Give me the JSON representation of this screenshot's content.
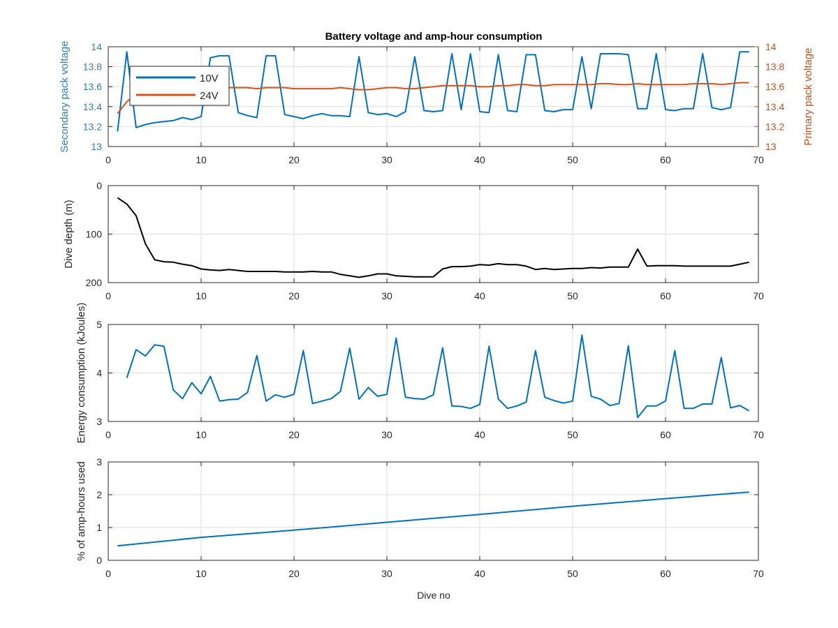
{
  "figure": {
    "title": "Battery voltage and amp-hour consumption",
    "xlabel": "Dive no"
  },
  "colors": {
    "blue": "#0072BD",
    "orange": "#D95319",
    "black": "#000000",
    "grid": "#dcdcdc",
    "axes": "#262626",
    "left_axis_blue": "#2f7fb6",
    "right_axis_orange": "#c8501c"
  },
  "chart_data": [
    {
      "type": "line",
      "title": "Battery voltage and amp-hour consumption",
      "xlabel": "",
      "ylabel": "Secondary pack voltage",
      "ylabel_right": "Primary pack voltage",
      "xlim": [
        0,
        70
      ],
      "ylim": [
        13,
        14
      ],
      "ylim_right": [
        13,
        14
      ],
      "xticks": [
        0,
        10,
        20,
        30,
        40,
        50,
        60,
        70
      ],
      "yticks": [
        13,
        13.2,
        13.4,
        13.6,
        13.8,
        14
      ],
      "yticklabels": [
        "13",
        "13.2",
        "13.4",
        "13.6",
        "13.8",
        "14"
      ],
      "yticks_right": [
        13,
        13.2,
        13.4,
        13.6,
        13.8,
        14
      ],
      "yticklabels_right": [
        "13",
        "13.2",
        "13.4",
        "13.6",
        "13.8",
        "14"
      ],
      "grid": true,
      "legend_position": "top-left",
      "series": [
        {
          "name": "10V",
          "axis": "left",
          "x": [
            1,
            2,
            3,
            4,
            5,
            6,
            7,
            8,
            9,
            10,
            11,
            12,
            13,
            14,
            15,
            16,
            17,
            18,
            19,
            20,
            21,
            22,
            23,
            24,
            25,
            26,
            27,
            28,
            29,
            30,
            31,
            32,
            33,
            34,
            35,
            36,
            37,
            38,
            39,
            40,
            41,
            42,
            43,
            44,
            45,
            46,
            47,
            48,
            49,
            50,
            51,
            52,
            53,
            54,
            55,
            56,
            57,
            58,
            59,
            60,
            61,
            62,
            63,
            64,
            65,
            66,
            67,
            68,
            69
          ],
          "values": [
            13.15,
            13.95,
            13.19,
            13.22,
            13.24,
            13.25,
            13.26,
            13.29,
            13.27,
            13.3,
            13.89,
            13.91,
            13.91,
            13.34,
            13.31,
            13.29,
            13.91,
            13.91,
            13.32,
            13.3,
            13.28,
            13.31,
            13.33,
            13.31,
            13.31,
            13.3,
            13.9,
            13.34,
            13.32,
            13.33,
            13.3,
            13.35,
            13.9,
            13.36,
            13.35,
            13.36,
            13.93,
            13.37,
            13.93,
            13.35,
            13.34,
            13.92,
            13.36,
            13.35,
            13.92,
            13.92,
            13.36,
            13.35,
            13.37,
            13.37,
            13.9,
            13.38,
            13.93,
            13.93,
            13.93,
            13.92,
            13.38,
            13.38,
            13.93,
            13.37,
            13.36,
            13.38,
            13.38,
            13.93,
            13.39,
            13.37,
            13.39,
            13.95,
            13.95
          ]
        },
        {
          "name": "24V",
          "axis": "right",
          "x": [
            1,
            2,
            3,
            4,
            5,
            6,
            7,
            8,
            9,
            10,
            11,
            12,
            13,
            14,
            15,
            16,
            17,
            18,
            19,
            20,
            21,
            22,
            23,
            24,
            25,
            26,
            27,
            28,
            29,
            30,
            31,
            32,
            33,
            34,
            35,
            36,
            37,
            38,
            39,
            40,
            41,
            42,
            43,
            44,
            45,
            46,
            47,
            48,
            49,
            50,
            51,
            52,
            53,
            54,
            55,
            56,
            57,
            58,
            59,
            60,
            61,
            62,
            63,
            64,
            65,
            66,
            67,
            68,
            69
          ],
          "values": [
            13.33,
            13.45,
            13.52,
            13.55,
            13.56,
            13.57,
            13.57,
            13.58,
            13.58,
            13.58,
            13.59,
            13.59,
            13.59,
            13.59,
            13.59,
            13.58,
            13.59,
            13.59,
            13.59,
            13.58,
            13.58,
            13.58,
            13.58,
            13.58,
            13.59,
            13.58,
            13.57,
            13.57,
            13.58,
            13.59,
            13.59,
            13.58,
            13.58,
            13.59,
            13.6,
            13.61,
            13.61,
            13.61,
            13.61,
            13.6,
            13.6,
            13.61,
            13.61,
            13.62,
            13.62,
            13.61,
            13.61,
            13.62,
            13.62,
            13.62,
            13.62,
            13.62,
            13.63,
            13.63,
            13.62,
            13.62,
            13.63,
            13.62,
            13.62,
            13.62,
            13.62,
            13.62,
            13.63,
            13.63,
            13.63,
            13.62,
            13.63,
            13.64,
            13.64
          ]
        }
      ]
    },
    {
      "type": "line",
      "title": "",
      "xlabel": "",
      "ylabel": "Dive depth (m)",
      "xlim": [
        0,
        70
      ],
      "ylim": [
        0,
        200
      ],
      "y_reversed": true,
      "xticks": [
        0,
        10,
        20,
        30,
        40,
        50,
        60,
        70
      ],
      "yticks": [
        0,
        100,
        200
      ],
      "yticklabels": [
        "0",
        "100",
        "200"
      ],
      "grid": true,
      "series": [
        {
          "x": [
            1,
            2,
            3,
            4,
            5,
            6,
            7,
            8,
            9,
            10,
            11,
            12,
            13,
            14,
            15,
            16,
            17,
            18,
            19,
            20,
            21,
            22,
            23,
            24,
            25,
            26,
            27,
            28,
            29,
            30,
            31,
            32,
            33,
            34,
            35,
            36,
            37,
            38,
            39,
            40,
            41,
            42,
            43,
            44,
            45,
            46,
            47,
            48,
            49,
            50,
            51,
            52,
            53,
            54,
            55,
            56,
            57,
            58,
            59,
            60,
            61,
            62,
            63,
            64,
            65,
            66,
            67,
            68,
            69
          ],
          "values": [
            25,
            38,
            62,
            120,
            153,
            157,
            158,
            162,
            165,
            172,
            174,
            175,
            173,
            175,
            177,
            177,
            177,
            177,
            178,
            178,
            178,
            177,
            178,
            178,
            183,
            186,
            189,
            186,
            182,
            182,
            186,
            187,
            188,
            188,
            188,
            172,
            167,
            167,
            166,
            163,
            164,
            161,
            163,
            163,
            166,
            173,
            171,
            173,
            172,
            171,
            171,
            169,
            170,
            168,
            168,
            168,
            131,
            166,
            165,
            165,
            165,
            166,
            166,
            166,
            166,
            166,
            166,
            162,
            158
          ]
        }
      ]
    },
    {
      "type": "line",
      "title": "",
      "xlabel": "",
      "ylabel": "Energy consumption (kJoules)",
      "xlim": [
        0,
        70
      ],
      "ylim": [
        3,
        5
      ],
      "xticks": [
        0,
        10,
        20,
        30,
        40,
        50,
        60,
        70
      ],
      "yticks": [
        3,
        4,
        5
      ],
      "yticklabels": [
        "3",
        "4",
        "5"
      ],
      "grid": true,
      "series": [
        {
          "x": [
            2,
            3,
            4,
            5,
            6,
            7,
            8,
            9,
            10,
            11,
            12,
            13,
            14,
            15,
            16,
            17,
            18,
            19,
            20,
            21,
            22,
            23,
            24,
            25,
            26,
            27,
            28,
            29,
            30,
            31,
            32,
            33,
            34,
            35,
            36,
            37,
            38,
            39,
            40,
            41,
            42,
            43,
            44,
            45,
            46,
            47,
            48,
            49,
            50,
            51,
            52,
            53,
            54,
            55,
            56,
            57,
            58,
            59,
            60,
            61,
            62,
            63,
            64,
            65,
            66,
            67,
            68,
            69
          ],
          "values": [
            3.9,
            4.48,
            4.35,
            4.58,
            4.55,
            3.65,
            3.47,
            3.8,
            3.57,
            3.93,
            3.42,
            3.45,
            3.46,
            3.6,
            4.36,
            3.42,
            3.55,
            3.5,
            3.56,
            4.46,
            3.37,
            3.42,
            3.47,
            3.62,
            4.51,
            3.46,
            3.7,
            3.52,
            3.56,
            4.72,
            3.5,
            3.47,
            3.46,
            3.55,
            4.52,
            3.32,
            3.31,
            3.27,
            3.35,
            4.55,
            3.46,
            3.27,
            3.32,
            3.4,
            4.46,
            3.5,
            3.43,
            3.38,
            3.42,
            4.78,
            3.52,
            3.46,
            3.33,
            3.37,
            4.56,
            3.08,
            3.32,
            3.32,
            3.42,
            4.46,
            3.27,
            3.27,
            3.36,
            3.36,
            4.32,
            3.28,
            3.33,
            3.22
          ]
        }
      ]
    },
    {
      "type": "line",
      "title": "",
      "xlabel": "Dive no",
      "ylabel": "% of amp-hours used",
      "xlim": [
        0,
        70
      ],
      "ylim": [
        0,
        3
      ],
      "xticks": [
        0,
        10,
        20,
        30,
        40,
        50,
        60,
        70
      ],
      "yticks": [
        0,
        1,
        2,
        3
      ],
      "yticklabels": [
        "0",
        "1",
        "2",
        "3"
      ],
      "grid": true,
      "series": [
        {
          "x": [
            1,
            10,
            20,
            30,
            40,
            50,
            60,
            69
          ],
          "values": [
            0.44,
            0.7,
            0.92,
            1.16,
            1.4,
            1.65,
            1.88,
            2.08
          ]
        }
      ]
    }
  ]
}
